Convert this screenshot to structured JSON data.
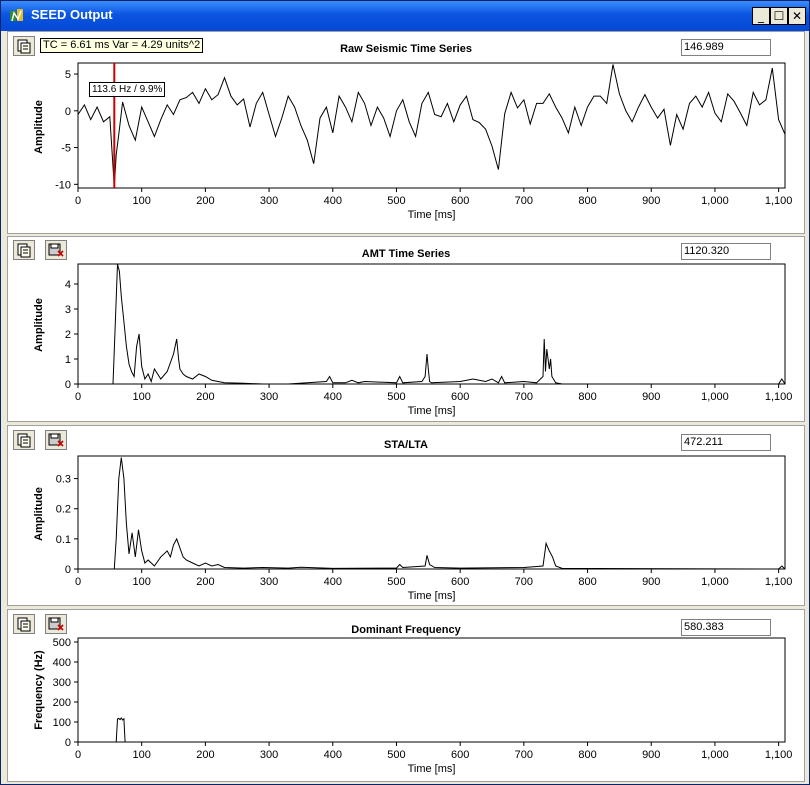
{
  "window": {
    "title": "SEED Output",
    "controls": [
      "_",
      "☐",
      "✕"
    ]
  },
  "charts": [
    {
      "title": "Raw Seismic Time Series",
      "value": "146.989",
      "ylabel": "Amplitude",
      "xlabel": "Time [ms]",
      "yticks": [
        "5",
        "0",
        "-5",
        "-10"
      ],
      "xticks": [
        "0",
        "100",
        "200",
        "300",
        "400",
        "500",
        "600",
        "700",
        "800",
        "900",
        "1,000",
        "1,100"
      ],
      "tc_text": "TC = 6.61 ms Var = 4.29 units^2",
      "cursor_text": "113.6 Hz / 9.9%"
    },
    {
      "title": "AMT Time Series",
      "value": "1120.320",
      "ylabel": "Amplitude",
      "xlabel": "Time [ms]",
      "yticks": [
        "4",
        "3",
        "2",
        "1",
        "0"
      ],
      "xticks": [
        "0",
        "100",
        "200",
        "300",
        "400",
        "500",
        "600",
        "700",
        "800",
        "900",
        "1,000",
        "1,100"
      ]
    },
    {
      "title": "STA/LTA",
      "value": "472.211",
      "ylabel": "Amplitude",
      "xlabel": "Time [ms]",
      "yticks": [
        "0.3",
        "0.2",
        "0.1",
        "0"
      ],
      "xticks": [
        "0",
        "100",
        "200",
        "300",
        "400",
        "500",
        "600",
        "700",
        "800",
        "900",
        "1,000",
        "1,100"
      ]
    },
    {
      "title": "Dominant Frequency",
      "value": "580.383",
      "ylabel": "Frequency (Hz)",
      "xlabel": "Time [ms]",
      "yticks": [
        "500",
        "400",
        "300",
        "200",
        "100",
        "0"
      ],
      "xticks": [
        "0",
        "100",
        "200",
        "300",
        "400",
        "500",
        "600",
        "700",
        "800",
        "900",
        "1,000",
        "1,100"
      ]
    }
  ],
  "chart_data": [
    {
      "type": "line",
      "title": "Raw Seismic Time Series",
      "xlabel": "Time [ms]",
      "ylabel": "Amplitude",
      "xlim": [
        0,
        1110
      ],
      "ylim": [
        -10.5,
        6.5
      ],
      "cursor_x": 57,
      "x": [
        0,
        10,
        20,
        30,
        40,
        50,
        57,
        60,
        65,
        70,
        80,
        90,
        100,
        110,
        120,
        130,
        140,
        150,
        160,
        170,
        180,
        190,
        200,
        210,
        220,
        230,
        240,
        250,
        260,
        270,
        280,
        290,
        300,
        310,
        320,
        330,
        340,
        350,
        360,
        370,
        380,
        390,
        400,
        410,
        420,
        430,
        440,
        450,
        460,
        470,
        480,
        490,
        500,
        510,
        520,
        530,
        540,
        550,
        560,
        570,
        580,
        590,
        600,
        610,
        620,
        630,
        640,
        650,
        660,
        670,
        680,
        690,
        700,
        710,
        720,
        730,
        740,
        750,
        760,
        770,
        780,
        790,
        800,
        810,
        820,
        830,
        840,
        850,
        860,
        870,
        880,
        890,
        900,
        910,
        920,
        930,
        940,
        950,
        960,
        970,
        980,
        990,
        1000,
        1010,
        1020,
        1030,
        1040,
        1050,
        1060,
        1070,
        1080,
        1090,
        1100,
        1110
      ],
      "y": [
        -0.5,
        0.8,
        -1.2,
        0.5,
        -1.5,
        -0.8,
        -10.3,
        -6,
        -2.5,
        1.2,
        -2,
        -4,
        0.5,
        -1.5,
        -3.5,
        -1.2,
        0.8,
        -0.5,
        1.5,
        1.8,
        2.5,
        1,
        3,
        1.5,
        2.2,
        4.5,
        2,
        0.8,
        1.6,
        -2.2,
        1,
        2.5,
        -0.5,
        -3.5,
        -1,
        2,
        0.5,
        -2,
        -4,
        -7.2,
        -1,
        0.5,
        -3,
        2,
        0.5,
        -1.5,
        2.5,
        1,
        -2,
        0.5,
        -1,
        -3.5,
        0,
        1.5,
        -1.5,
        -3.5,
        1,
        2.5,
        -0.5,
        -0.8,
        1,
        -1.5,
        0.8,
        2,
        -1.2,
        -1.6,
        -2.5,
        -4.8,
        -8,
        -0.4,
        2.5,
        0.4,
        1.5,
        -1.8,
        1,
        1,
        2.3,
        0.5,
        -1,
        -3,
        0.5,
        -2,
        0.5,
        2,
        2,
        1,
        6.3,
        2.3,
        0,
        -1.5,
        0.5,
        2.2,
        0.5,
        -1,
        0.2,
        -4.7,
        -0.5,
        -2.5,
        1,
        2,
        0.5,
        2.5,
        -0.3,
        -1.5,
        2.3,
        1.3,
        -0.3,
        -2,
        2.5,
        0.8,
        1.5,
        5.8,
        -1.2,
        -3.2
      ]
    },
    {
      "type": "line",
      "title": "AMT Time Series",
      "xlabel": "Time [ms]",
      "ylabel": "Amplitude",
      "xlim": [
        0,
        1110
      ],
      "ylim": [
        0,
        4.8
      ],
      "x": [
        0,
        55,
        58,
        62,
        65,
        68,
        72,
        76,
        80,
        84,
        88,
        92,
        96,
        100,
        105,
        110,
        115,
        120,
        130,
        140,
        150,
        155,
        158,
        160,
        165,
        170,
        180,
        190,
        200,
        210,
        220,
        230,
        260,
        290,
        330,
        390,
        395,
        400,
        420,
        430,
        440,
        450,
        500,
        505,
        510,
        540,
        545,
        548,
        550,
        552,
        555,
        600,
        620,
        640,
        650,
        660,
        665,
        670,
        700,
        720,
        730,
        732,
        734,
        736,
        740,
        742,
        744,
        750,
        760,
        1100,
        1105,
        1110
      ],
      "y": [
        0,
        0,
        2,
        4.8,
        4.5,
        3.5,
        2.5,
        1.5,
        0.8,
        0.5,
        0.3,
        1.5,
        2,
        0.7,
        0.2,
        0.4,
        0.1,
        0.6,
        0.2,
        0.5,
        1.2,
        1.8,
        1,
        0.6,
        0.4,
        0.3,
        0.2,
        0.4,
        0.3,
        0.15,
        0.1,
        0.05,
        0.03,
        0,
        0,
        0.1,
        0.3,
        0.05,
        0.05,
        0.15,
        0.05,
        0.1,
        0.05,
        0.3,
        0.05,
        0.1,
        0.3,
        1.2,
        0.6,
        0.1,
        0.05,
        0.1,
        0.2,
        0.1,
        0.2,
        0.05,
        0.3,
        0.05,
        0.1,
        0.05,
        0.3,
        1.8,
        0.5,
        1.4,
        0.6,
        1,
        0.3,
        0.05,
        0,
        0,
        0.2,
        0
      ]
    },
    {
      "type": "line",
      "title": "STA/LTA",
      "xlabel": "Time [ms]",
      "ylabel": "Amplitude",
      "xlim": [
        0,
        1110
      ],
      "ylim": [
        0,
        0.375
      ],
      "x": [
        0,
        57,
        60,
        64,
        68,
        72,
        76,
        80,
        85,
        90,
        95,
        100,
        105,
        110,
        120,
        130,
        140,
        145,
        150,
        155,
        160,
        165,
        170,
        180,
        190,
        200,
        210,
        220,
        230,
        260,
        290,
        330,
        350,
        400,
        500,
        505,
        510,
        545,
        548,
        552,
        560,
        600,
        700,
        730,
        735,
        740,
        745,
        750,
        760,
        1100,
        1105,
        1110
      ],
      "y": [
        0,
        0,
        0.1,
        0.3,
        0.37,
        0.3,
        0.15,
        0.05,
        0.12,
        0.04,
        0.13,
        0.06,
        0.02,
        0.03,
        0.01,
        0.04,
        0.06,
        0.04,
        0.08,
        0.1,
        0.07,
        0.04,
        0.03,
        0.02,
        0.01,
        0.02,
        0.01,
        0.015,
        0.005,
        0.003,
        0.005,
        0.003,
        0.006,
        0.002,
        0.003,
        0.015,
        0.005,
        0.01,
        0.045,
        0.015,
        0.005,
        0.003,
        0.005,
        0.01,
        0.085,
        0.06,
        0.04,
        0.01,
        0.002,
        0,
        0.01,
        0
      ]
    },
    {
      "type": "line",
      "title": "Dominant Frequency",
      "xlabel": "Time [ms]",
      "ylabel": "Frequency (Hz)",
      "xlim": [
        0,
        1110
      ],
      "ylim": [
        0,
        520
      ],
      "x": [
        0,
        60,
        62,
        64,
        66,
        68,
        70,
        72,
        74,
        1110
      ],
      "y": [
        0,
        0,
        115,
        118,
        112,
        120,
        110,
        116,
        0,
        0
      ]
    }
  ]
}
